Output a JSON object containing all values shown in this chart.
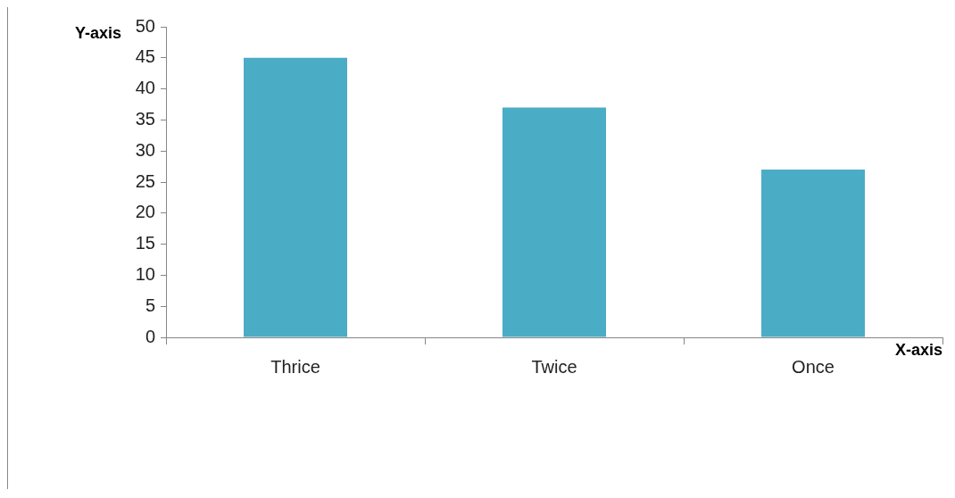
{
  "chart_data": {
    "type": "bar",
    "xlabel": "X-axis",
    "ylabel": "Y-axis",
    "categories": [
      "Thrice",
      "Twice",
      "Once"
    ],
    "series": [
      {
        "color": "#4bacc6",
        "values": [
          45,
          37,
          27
        ]
      }
    ],
    "ylim": [
      0,
      50
    ],
    "yticks": [
      0,
      5,
      10,
      15,
      20,
      25,
      30,
      35,
      40,
      45,
      50
    ],
    "grid": false,
    "legend": false
  }
}
